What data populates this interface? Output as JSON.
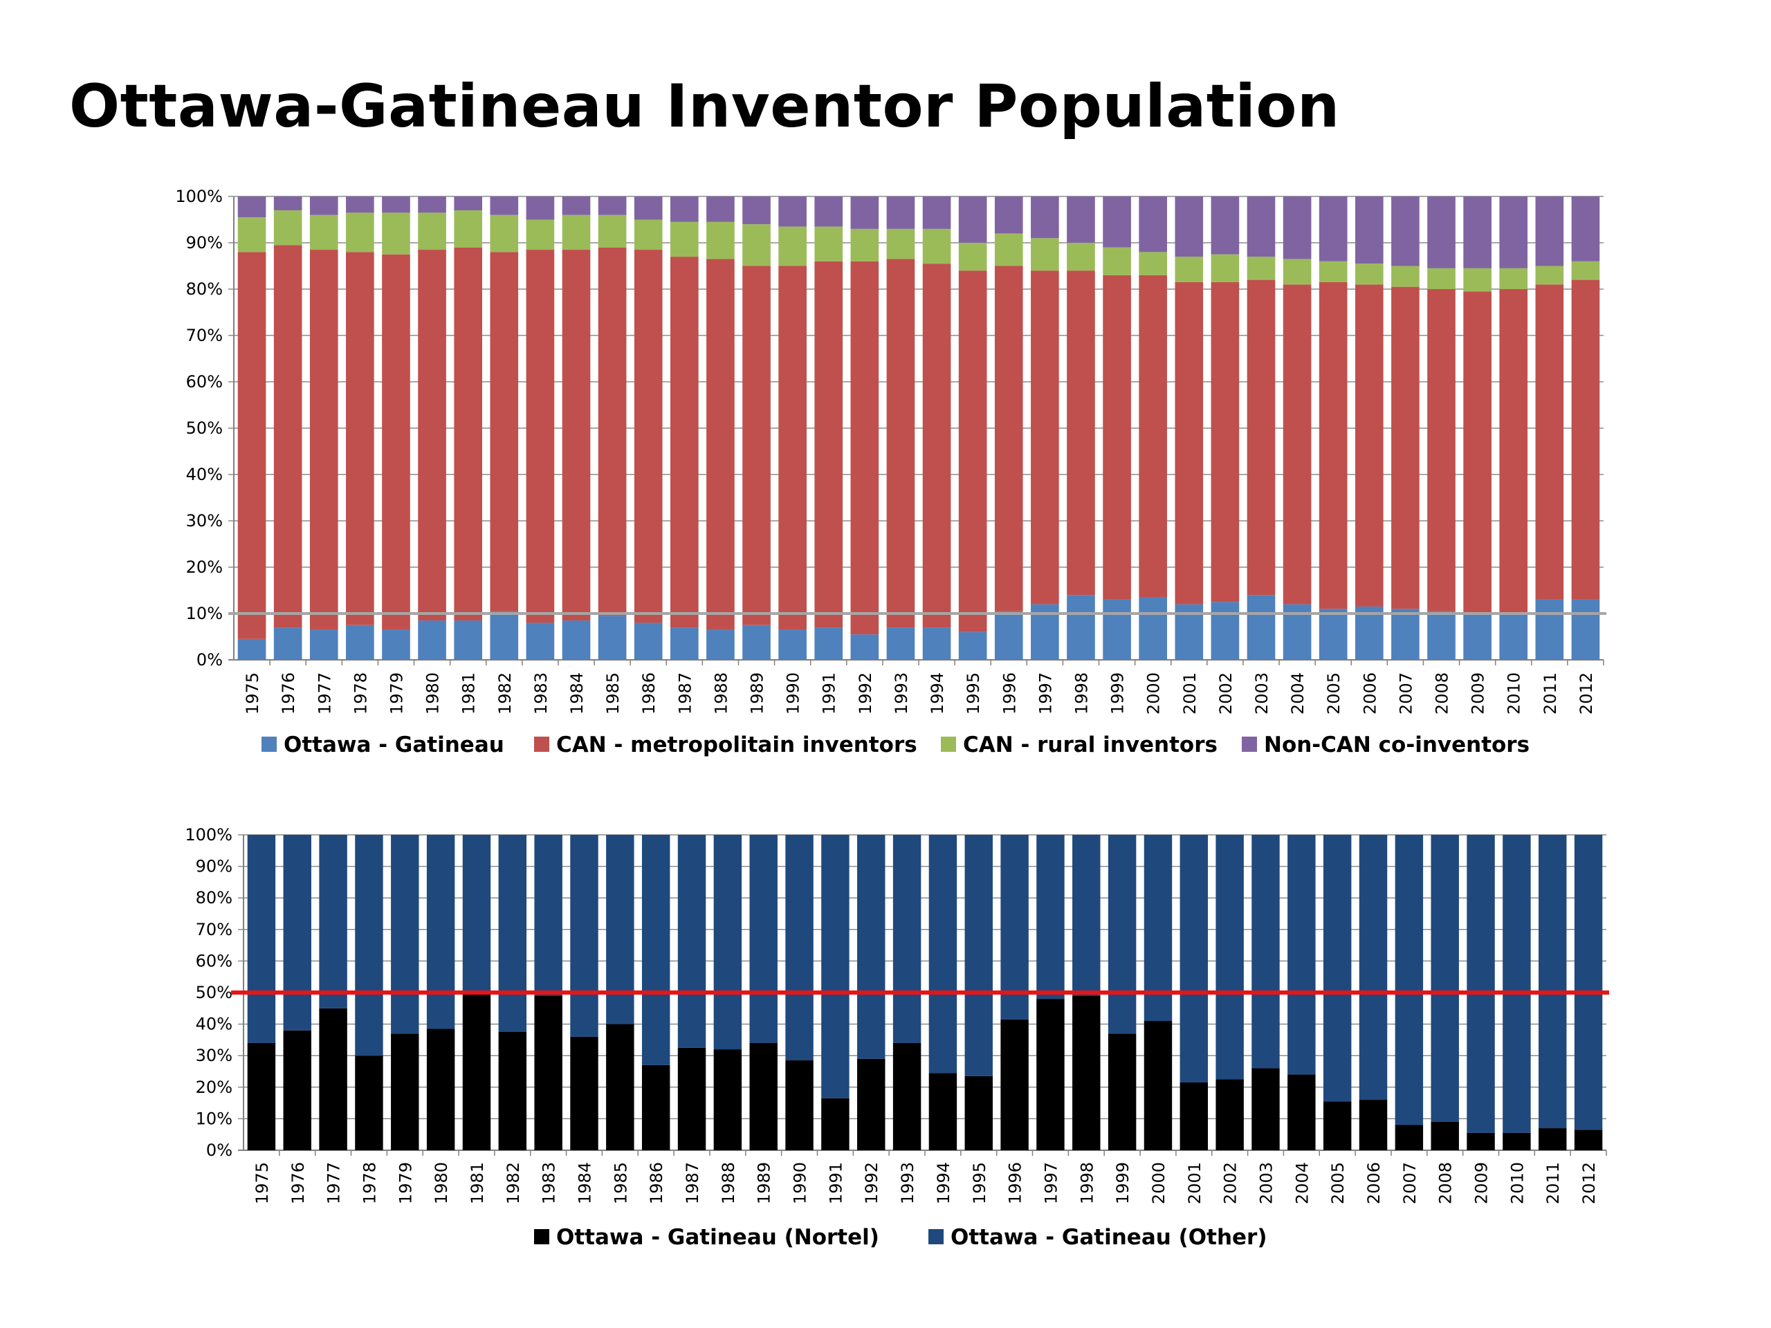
{
  "slide": {
    "title": "Ottawa-Gatineau Inventor Population"
  },
  "chart_data": [
    {
      "type": "bar",
      "stacked": "percent",
      "categories": [
        "1975",
        "1976",
        "1977",
        "1978",
        "1979",
        "1980",
        "1981",
        "1982",
        "1983",
        "1984",
        "1985",
        "1986",
        "1987",
        "1988",
        "1989",
        "1990",
        "1991",
        "1992",
        "1993",
        "1994",
        "1995",
        "1996",
        "1997",
        "1998",
        "1999",
        "2000",
        "2001",
        "2002",
        "2003",
        "2004",
        "2005",
        "2006",
        "2007",
        "2008",
        "2009",
        "2010",
        "2011",
        "2012"
      ],
      "ylim": [
        0,
        100
      ],
      "yticks": [
        "0%",
        "10%",
        "20%",
        "30%",
        "40%",
        "50%",
        "60%",
        "70%",
        "80%",
        "90%",
        "100%"
      ],
      "grid": true,
      "legend_position": "bottom",
      "reference_line": {
        "value": 10,
        "color": "#a6a6a6"
      },
      "series": [
        {
          "name": "Ottawa - Gatineau",
          "color": "#4f81bd",
          "values": [
            4.5,
            7,
            6.5,
            7.5,
            6.5,
            8.5,
            8.5,
            10.5,
            8,
            8.5,
            9.5,
            8,
            7,
            6.5,
            7.5,
            6.5,
            7,
            5.5,
            7,
            7,
            6,
            10.5,
            12,
            14,
            13,
            13.5,
            12,
            12.5,
            14,
            12,
            11,
            11.5,
            11,
            10.5,
            10,
            10,
            13,
            13
          ]
        },
        {
          "name": "CAN - metropolitain inventors",
          "color": "#c0504d",
          "values": [
            83.5,
            82.5,
            82,
            80.5,
            81,
            80,
            80.5,
            77.5,
            80.5,
            80,
            79.5,
            80.5,
            80,
            80,
            77.5,
            78.5,
            79,
            80.5,
            79.5,
            78.5,
            78,
            74.5,
            72,
            70,
            70,
            69.5,
            69.5,
            69,
            68,
            69,
            70.5,
            69.5,
            69.5,
            69.5,
            69.5,
            70,
            68,
            69
          ]
        },
        {
          "name": "CAN - rural inventors",
          "color": "#9bbb59",
          "values": [
            7.5,
            7.5,
            7.5,
            8.5,
            9,
            8,
            8,
            8,
            6.5,
            7.5,
            7,
            6.5,
            7.5,
            8,
            9,
            8.5,
            7.5,
            7,
            6.5,
            7.5,
            6,
            7,
            7,
            6,
            6,
            5,
            5.5,
            6,
            5,
            5.5,
            4.5,
            4.5,
            4.5,
            4.5,
            5,
            4.5,
            4,
            4
          ]
        },
        {
          "name": "Non-CAN co-inventors",
          "color": "#8064a2",
          "values": [
            4.5,
            3,
            4,
            3.5,
            3.5,
            3.5,
            3,
            4,
            5,
            4,
            4,
            5,
            5.5,
            5.5,
            6,
            6.5,
            6.5,
            7,
            7,
            7,
            10,
            8,
            9,
            10,
            11,
            12,
            13,
            12.5,
            13,
            13.5,
            14,
            14.5,
            15,
            15.5,
            15.5,
            15.5,
            15,
            14
          ]
        }
      ]
    },
    {
      "type": "bar",
      "stacked": "percent",
      "categories": [
        "1975",
        "1976",
        "1977",
        "1978",
        "1979",
        "1980",
        "1981",
        "1982",
        "1983",
        "1984",
        "1985",
        "1986",
        "1987",
        "1988",
        "1989",
        "1990",
        "1991",
        "1992",
        "1993",
        "1994",
        "1995",
        "1996",
        "1997",
        "1998",
        "1999",
        "2000",
        "2001",
        "2002",
        "2003",
        "2004",
        "2005",
        "2006",
        "2007",
        "2008",
        "2009",
        "2010",
        "2011",
        "2012"
      ],
      "ylim": [
        0,
        100
      ],
      "yticks": [
        "0%",
        "10%",
        "20%",
        "30%",
        "40%",
        "50%",
        "60%",
        "70%",
        "80%",
        "90%",
        "100%"
      ],
      "grid": true,
      "legend_position": "bottom",
      "reference_line": {
        "value": 50,
        "color": "#e81416"
      },
      "series": [
        {
          "name": "Ottawa - Gatineau (Nortel)",
          "color": "#000000",
          "values": [
            34,
            38,
            45,
            30,
            37,
            38.5,
            49.5,
            37.5,
            49,
            36,
            40,
            27,
            32.5,
            32,
            34,
            28.5,
            16.5,
            29,
            34,
            24.5,
            23.5,
            41.5,
            48,
            49,
            37,
            41,
            21.5,
            22.5,
            26,
            24,
            15.5,
            16,
            8,
            9,
            5.5,
            5.5,
            7,
            6.5
          ]
        },
        {
          "name": "Ottawa - Gatineau (Other)",
          "color": "#1f497d",
          "values": [
            66,
            62,
            55,
            70,
            63,
            61.5,
            50.5,
            62.5,
            51,
            64,
            60,
            73,
            67.5,
            68,
            66,
            71.5,
            83.5,
            71,
            66,
            75.5,
            76.5,
            58.5,
            52,
            51,
            63,
            59,
            78.5,
            77.5,
            74,
            76,
            84.5,
            84,
            92,
            91,
            94.5,
            94.5,
            93,
            93.5
          ]
        }
      ]
    }
  ]
}
